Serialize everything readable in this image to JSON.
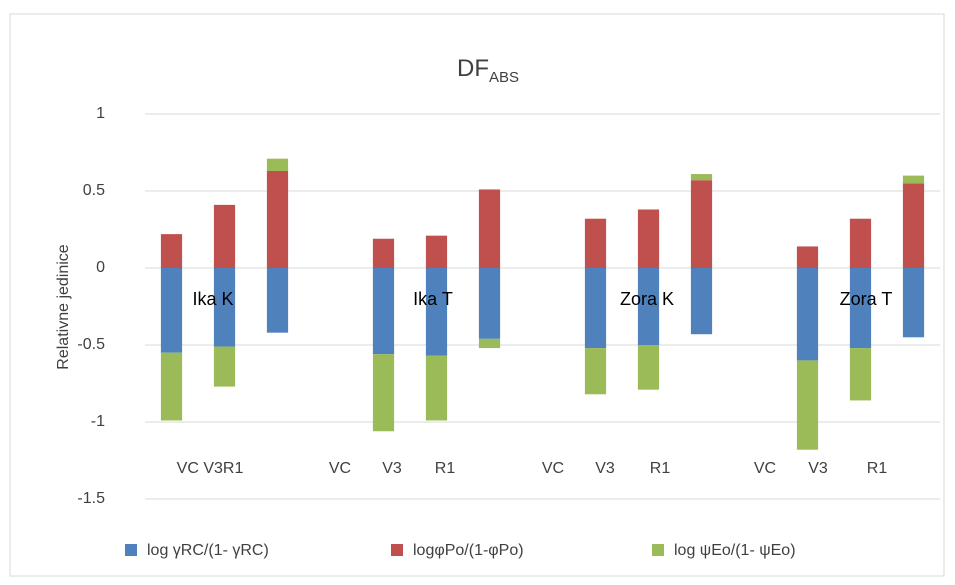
{
  "chart_data": {
    "type": "stacked_bar",
    "title": "DF",
    "title_sub": "ABS",
    "y_label": "Relativne jedinice",
    "categories": [
      null,
      null,
      null,
      null,
      null,
      null,
      null,
      null,
      null,
      null,
      null,
      null,
      null,
      null,
      null
    ],
    "axis_labels": [
      "VC V3R1",
      "VC",
      "V3",
      "R1",
      "VC",
      "V3",
      "R1",
      "VC",
      "V3",
      "R1"
    ],
    "group_labels": [
      "Ika K",
      "Ika T",
      "Zora K",
      "Zora T"
    ],
    "series": [
      {
        "name": "log γRC/(1- γRC)",
        "color": "#4f81bd",
        "values": [
          -0.55,
          -0.51,
          -0.42,
          null,
          -0.56,
          -0.57,
          -0.46,
          null,
          -0.52,
          -0.5,
          -0.43,
          null,
          -0.6,
          -0.52,
          -0.45
        ]
      },
      {
        "name": "logφPo/(1-φPo)",
        "color": "#c0504d",
        "values": [
          0.22,
          0.41,
          0.63,
          null,
          0.19,
          0.21,
          0.51,
          null,
          0.32,
          0.38,
          0.57,
          null,
          0.14,
          0.32,
          0.55
        ]
      },
      {
        "name": "log ψEo/(1- ψEo)",
        "color": "#9bbb59",
        "values": [
          -0.44,
          -0.26,
          0.08,
          null,
          -0.5,
          -0.42,
          -0.06,
          null,
          -0.3,
          -0.29,
          0.04,
          null,
          -0.58,
          -0.34,
          0.05
        ]
      }
    ],
    "ylim": [
      -1.5,
      1
    ],
    "yticks": [
      -1.5,
      -1,
      -0.5,
      0,
      0.5,
      1
    ],
    "grid": true
  }
}
